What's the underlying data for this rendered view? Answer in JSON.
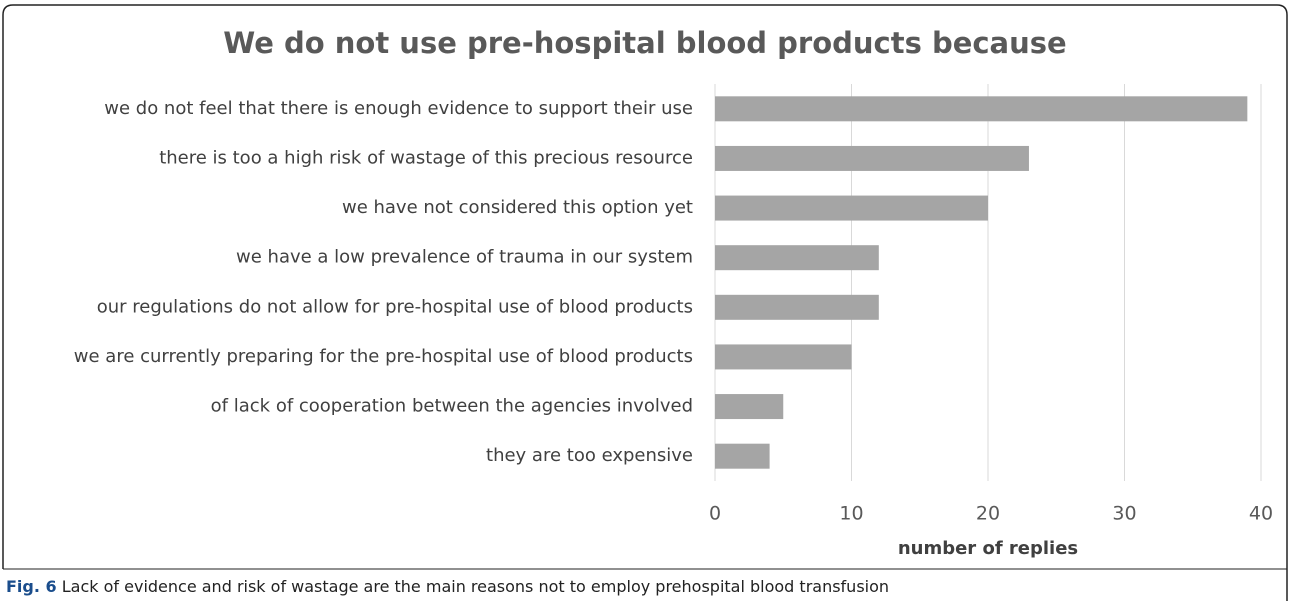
{
  "chart_data": {
    "type": "barh",
    "title": "We do not use pre-hospital blood products because",
    "categories": [
      "we do not feel that there is enough evidence to support their use",
      "there is too a high risk of wastage of this precious resource",
      "we have not considered this option yet",
      "we have a low prevalence of trauma in our system",
      "our regulations do not allow for pre-hospital use of blood products",
      "we are currently preparing for the pre-hospital use of blood products",
      "of lack of cooperation between the agencies involved",
      "they are too expensive"
    ],
    "values": [
      39,
      23,
      20,
      12,
      12,
      10,
      5,
      4
    ],
    "color": "#a5a5a5",
    "xlabel": "number of replies",
    "xlim": [
      0,
      40
    ],
    "xticks": [
      0,
      10,
      20,
      30,
      40
    ],
    "grid": true
  },
  "caption": {
    "label": "Fig. 6",
    "text": "Lack of evidence and risk of wastage are the main reasons not to employ prehospital blood transfusion"
  }
}
